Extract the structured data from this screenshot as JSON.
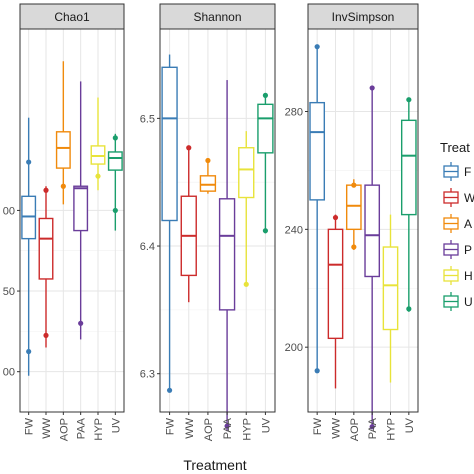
{
  "chart_data": {
    "type": "box",
    "xlabel": "Treatment",
    "categories": [
      "FW",
      "WW",
      "AOP",
      "PAA",
      "HYP",
      "UV"
    ],
    "colors": [
      "#3a7cb5",
      "#cc2b2b",
      "#f08a0c",
      "#6a3d9a",
      "#e8e33a",
      "#1a9e6c"
    ],
    "legend": {
      "title": "Treat",
      "position": "right",
      "entries": [
        "FW",
        "WW",
        "AOP",
        "PAA",
        "HYP",
        "UV"
      ],
      "visible_fragments": [
        "F",
        "W",
        "A",
        "P",
        "H",
        "U"
      ]
    },
    "panels": [
      {
        "title": "Chao1",
        "ylim": [
          95,
          104.5
        ],
        "ticks": [
          {
            "value": 96,
            "label": "00"
          },
          {
            "value": 98,
            "label": "50"
          },
          {
            "value": 100,
            "label": "00"
          }
        ],
        "boxes": [
          {
            "category": "FW",
            "min": 95.9,
            "q1": 99.3,
            "median": 99.85,
            "q3": 100.35,
            "max": 102.3,
            "outliers": [
              101.2,
              96.5
            ]
          },
          {
            "category": "WW",
            "min": 96.6,
            "q1": 98.3,
            "median": 99.3,
            "q3": 99.8,
            "max": 100.6,
            "outliers": [
              100.5,
              96.9
            ]
          },
          {
            "category": "AOP",
            "min": 100.15,
            "q1": 101.05,
            "median": 101.55,
            "q3": 101.95,
            "max": 103.7,
            "outliers": [
              100.6
            ]
          },
          {
            "category": "PAA",
            "min": 96.8,
            "q1": 99.5,
            "median": 100.55,
            "q3": 100.6,
            "max": 103.2,
            "outliers": [
              97.2
            ]
          },
          {
            "category": "HYP",
            "min": 100.5,
            "q1": 101.15,
            "median": 101.35,
            "q3": 101.6,
            "max": 102.8,
            "outliers": [
              100.85
            ]
          },
          {
            "category": "UV",
            "min": 99.5,
            "q1": 101.0,
            "median": 101.3,
            "q3": 101.45,
            "max": 101.9,
            "outliers": [
              101.8,
              100.0
            ]
          }
        ]
      },
      {
        "title": "Shannon",
        "ylim": [
          6.27,
          6.57
        ],
        "ticks": [
          {
            "value": 6.3,
            "label": "6.3"
          },
          {
            "value": 6.4,
            "label": "6.4"
          },
          {
            "value": 6.5,
            "label": "6.5"
          }
        ],
        "boxes": [
          {
            "category": "FW",
            "min": 6.287,
            "q1": 6.42,
            "median": 6.5,
            "q3": 6.54,
            "max": 6.55,
            "outliers": [
              6.287
            ]
          },
          {
            "category": "WW",
            "min": 6.356,
            "q1": 6.377,
            "median": 6.408,
            "q3": 6.439,
            "max": 6.477,
            "outliers": [
              6.477
            ]
          },
          {
            "category": "AOP",
            "min": 6.441,
            "q1": 6.443,
            "median": 6.448,
            "q3": 6.455,
            "max": 6.467,
            "outliers": [
              6.467
            ]
          },
          {
            "category": "PAA",
            "min": 6.255,
            "q1": 6.35,
            "median": 6.408,
            "q3": 6.437,
            "max": 6.53,
            "outliers": [
              6.259
            ]
          },
          {
            "category": "HYP",
            "min": 6.37,
            "q1": 6.438,
            "median": 6.46,
            "q3": 6.477,
            "max": 6.49,
            "outliers": [
              6.37
            ]
          },
          {
            "category": "UV",
            "min": 6.41,
            "q1": 6.473,
            "median": 6.5,
            "q3": 6.511,
            "max": 6.518,
            "outliers": [
              6.518,
              6.412
            ]
          }
        ]
      },
      {
        "title": "InvSimpson",
        "ylim": [
          178,
          308
        ],
        "ticks": [
          {
            "value": 200,
            "label": "200"
          },
          {
            "value": 240,
            "label": "240"
          },
          {
            "value": 280,
            "label": "280"
          }
        ],
        "boxes": [
          {
            "category": "FW",
            "min": 192,
            "q1": 250,
            "median": 273,
            "q3": 283,
            "max": 302,
            "outliers": [
              302,
              192
            ]
          },
          {
            "category": "WW",
            "min": 186,
            "q1": 203,
            "median": 228,
            "q3": 240,
            "max": 245,
            "outliers": [
              244
            ]
          },
          {
            "category": "AOP",
            "min": 233,
            "q1": 240,
            "median": 248,
            "q3": 255,
            "max": 257,
            "outliers": [
              255,
              234
            ]
          },
          {
            "category": "PAA",
            "min": 173,
            "q1": 224,
            "median": 238,
            "q3": 255,
            "max": 288,
            "outliers": [
              288,
              173
            ]
          },
          {
            "category": "HYP",
            "min": 188,
            "q1": 206,
            "median": 221,
            "q3": 234,
            "max": 245,
            "outliers": []
          },
          {
            "category": "UV",
            "min": 212,
            "q1": 245,
            "median": 265,
            "q3": 277,
            "max": 284,
            "outliers": [
              284,
              213
            ]
          }
        ]
      }
    ]
  }
}
